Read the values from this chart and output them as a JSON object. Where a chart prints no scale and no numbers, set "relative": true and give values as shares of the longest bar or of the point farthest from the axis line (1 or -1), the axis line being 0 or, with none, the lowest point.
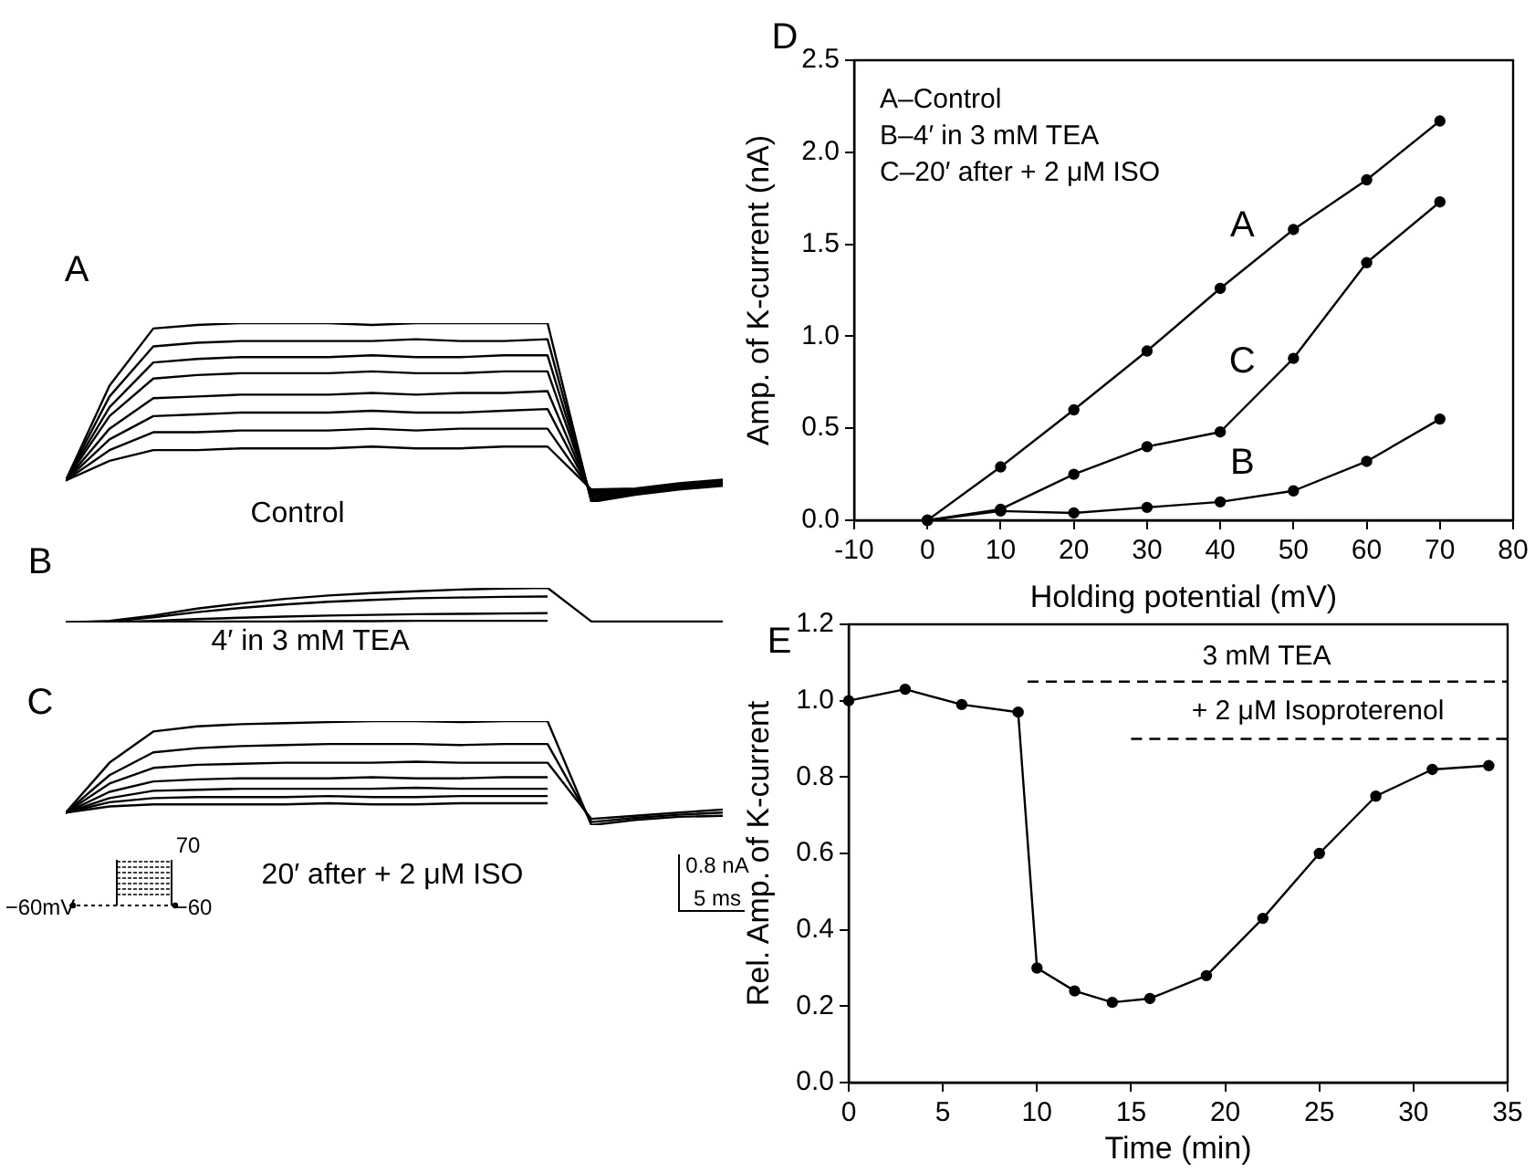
{
  "chart_data": [
    {
      "type": "line",
      "title": "A",
      "relative": true,
      "annotations": [
        "Control"
      ],
      "categories": [
        null,
        null,
        null,
        null,
        null,
        null,
        null,
        null,
        null,
        null,
        null,
        null,
        null,
        null,
        null,
        null
      ],
      "series": [
        {
          "color": "#000000",
          "values": [
            0.12,
            0.65,
            0.97,
            0.99,
            1,
            1,
            1,
            0.99,
            1,
            1,
            1,
            1,
            0,
            0.04,
            0.07,
            0.09
          ]
        },
        {
          "color": "#000000",
          "values": [
            0.12,
            0.59,
            0.87,
            0.89,
            0.9,
            0.9,
            0.9,
            0.9,
            0.91,
            0.9,
            0.9,
            0.91,
            0.01,
            0.045,
            0.075,
            0.095
          ]
        },
        {
          "color": "#000000",
          "values": [
            0.12,
            0.53,
            0.78,
            0.8,
            0.81,
            0.81,
            0.81,
            0.82,
            0.81,
            0.81,
            0.82,
            0.82,
            0.02,
            0.05,
            0.08,
            0.1
          ]
        },
        {
          "color": "#000000",
          "values": [
            0.12,
            0.48,
            0.69,
            0.71,
            0.72,
            0.72,
            0.72,
            0.73,
            0.72,
            0.72,
            0.73,
            0.73,
            0.03,
            0.055,
            0.085,
            0.105
          ]
        },
        {
          "color": "#000000",
          "values": [
            0.12,
            0.41,
            0.58,
            0.59,
            0.6,
            0.6,
            0.6,
            0.61,
            0.6,
            0.61,
            0.61,
            0.62,
            0.04,
            0.06,
            0.09,
            0.11
          ]
        },
        {
          "color": "#000000",
          "values": [
            0.12,
            0.35,
            0.48,
            0.49,
            0.5,
            0.5,
            0.5,
            0.51,
            0.5,
            0.5,
            0.51,
            0.52,
            0.05,
            0.065,
            0.095,
            0.115
          ]
        },
        {
          "color": "#000000",
          "values": [
            0.12,
            0.29,
            0.39,
            0.39,
            0.4,
            0.4,
            0.4,
            0.41,
            0.4,
            0.41,
            0.41,
            0.41,
            0.06,
            0.07,
            0.1,
            0.12
          ]
        },
        {
          "color": "#000000",
          "values": [
            0.12,
            0.23,
            0.29,
            0.29,
            0.3,
            0.3,
            0.3,
            0.31,
            0.3,
            0.3,
            0.31,
            0.31,
            0.07,
            0.075,
            0.105,
            0.125
          ]
        }
      ]
    },
    {
      "type": "line",
      "title": "B",
      "relative": true,
      "annotations": [
        "4′ in 3 mM TEA"
      ],
      "categories": [
        null,
        null,
        null,
        null,
        null,
        null,
        null,
        null,
        null,
        null,
        null,
        null,
        null,
        null,
        null,
        null
      ],
      "series": [
        {
          "color": "#000000",
          "values": [
            0,
            0.05,
            0.2,
            0.4,
            0.55,
            0.68,
            0.78,
            0.85,
            0.9,
            0.95,
            0.98,
            1,
            0.03,
            0.03,
            0.03,
            0.03
          ]
        },
        {
          "color": "#000000",
          "values": [
            0,
            0.03,
            0.15,
            0.3,
            0.42,
            0.52,
            0.6,
            0.65,
            0.7,
            0.72,
            0.74,
            0.75,
            null,
            null,
            null,
            null
          ]
        },
        {
          "color": "#000000",
          "values": [
            0,
            0.01,
            0.05,
            0.1,
            0.14,
            0.17,
            0.2,
            0.22,
            0.24,
            0.25,
            0.26,
            0.27,
            null,
            null,
            null,
            null
          ]
        },
        {
          "color": "#000000",
          "values": [
            0,
            0,
            0.01,
            0.02,
            0.03,
            0.03,
            0.04,
            0.04,
            0.05,
            0.05,
            0.05,
            0.05,
            null,
            null,
            null,
            null
          ]
        }
      ]
    },
    {
      "type": "line",
      "title": "C",
      "relative": true,
      "annotations": [
        "20′ after + 2 μM ISO",
        "70",
        "−60mV",
        "−60",
        "0.8 nA",
        "5 ms"
      ],
      "categories": [
        null,
        null,
        null,
        null,
        null,
        null,
        null,
        null,
        null,
        null,
        null,
        null,
        null,
        null,
        null,
        null
      ],
      "series": [
        {
          "color": "#000000",
          "values": [
            0.12,
            0.6,
            0.9,
            0.95,
            0.97,
            0.98,
            0.99,
            1,
            1,
            0.99,
            1,
            1,
            0,
            0.05,
            0.08,
            0.09
          ]
        },
        {
          "color": "#000000",
          "values": [
            0.12,
            0.48,
            0.7,
            0.74,
            0.76,
            0.77,
            0.78,
            0.78,
            0.78,
            0.77,
            0.78,
            0.78,
            0.03,
            0.07,
            0.1,
            0.12
          ]
        },
        {
          "color": "#000000",
          "values": [
            0.12,
            0.4,
            0.55,
            0.58,
            0.59,
            0.6,
            0.6,
            0.6,
            0.61,
            0.6,
            0.6,
            0.6,
            0.06,
            0.09,
            0.12,
            0.15
          ]
        },
        {
          "color": "#000000",
          "values": [
            0.12,
            0.32,
            0.42,
            0.44,
            0.45,
            0.45,
            0.45,
            0.46,
            0.45,
            0.45,
            0.46,
            0.46,
            null,
            null,
            null,
            null
          ]
        },
        {
          "color": "#000000",
          "values": [
            0.12,
            0.26,
            0.33,
            0.34,
            0.35,
            0.35,
            0.35,
            0.35,
            0.36,
            0.35,
            0.35,
            0.35,
            null,
            null,
            null,
            null
          ]
        },
        {
          "color": "#000000",
          "values": [
            0.12,
            0.22,
            0.26,
            0.27,
            0.27,
            0.27,
            0.28,
            0.27,
            0.27,
            0.28,
            0.28,
            0.28,
            null,
            null,
            null,
            null
          ]
        },
        {
          "color": "#000000",
          "values": [
            0.12,
            0.18,
            0.2,
            0.2,
            0.2,
            0.2,
            0.21,
            0.2,
            0.2,
            0.21,
            0.21,
            0.21,
            null,
            null,
            null,
            null
          ]
        }
      ]
    },
    {
      "type": "line",
      "title": "D",
      "xlabel": "Holding potential (mV)",
      "ylabel": "Amp. of K-current (nA)",
      "marker": "circle",
      "annotations": [
        "A–Control",
        "B–4′ in 3 mM TEA",
        "C–20′ after + 2 μM ISO"
      ],
      "x": [
        0,
        10,
        20,
        30,
        40,
        50,
        60,
        70
      ],
      "series": [
        {
          "name": "A",
          "color": "#000000",
          "values": [
            0,
            0.29,
            0.6,
            0.92,
            1.26,
            1.58,
            1.85,
            2.17
          ]
        },
        {
          "name": "C",
          "color": "#000000",
          "values": [
            0,
            0.06,
            0.25,
            0.4,
            0.48,
            0.88,
            1.4,
            1.73
          ]
        },
        {
          "name": "B",
          "color": "#000000",
          "values": [
            0,
            0.05,
            0.04,
            0.07,
            0.1,
            0.16,
            0.32,
            0.55
          ]
        }
      ],
      "xlim": [
        -10,
        80
      ],
      "xticks": [
        -10,
        0,
        10,
        20,
        30,
        40,
        50,
        60,
        70,
        80
      ],
      "ylim": [
        0,
        2.5
      ],
      "yticks": [
        {
          "value": 0,
          "label": "0.0"
        },
        {
          "value": 0.5,
          "label": "0.5"
        },
        {
          "value": 1,
          "label": "1.0"
        },
        {
          "value": 1.5,
          "label": "1.5"
        },
        {
          "value": 2,
          "label": "2.0"
        },
        {
          "value": 2.5,
          "label": "2.5"
        }
      ]
    },
    {
      "type": "line",
      "title": "E",
      "xlabel": "Time (min)",
      "ylabel": "Rel. Amp. of K-current",
      "marker": "circle",
      "annotations": [
        "3 mM TEA",
        "+ 2 μM Isoproterenol"
      ],
      "x": [
        0,
        3,
        6,
        9,
        10,
        12,
        14,
        16,
        19,
        22,
        25,
        28,
        31,
        34
      ],
      "series": [
        {
          "color": "#000000",
          "values": [
            1.0,
            1.03,
            0.99,
            0.97,
            0.3,
            0.24,
            0.21,
            0.22,
            0.28,
            0.43,
            0.6,
            0.75,
            0.82,
            0.83
          ]
        },
        {
          "color": "#000000",
          "x": [
            9.5,
            35
          ],
          "values": [
            1.05,
            1.05
          ],
          "marker": "none",
          "line_style": "dashed"
        },
        {
          "color": "#000000",
          "x": [
            15,
            35
          ],
          "values": [
            0.9,
            0.9
          ],
          "marker": "none",
          "line_style": "dashed"
        }
      ],
      "xlim": [
        0,
        35
      ],
      "xticks": [
        0,
        5,
        10,
        15,
        20,
        25,
        30,
        35
      ],
      "ylim": [
        0,
        1.2
      ],
      "yticks": [
        {
          "value": 0,
          "label": "0.0"
        },
        {
          "value": 0.2,
          "label": "0.2"
        },
        {
          "value": 0.4,
          "label": "0.4"
        },
        {
          "value": 0.6,
          "label": "0.6"
        },
        {
          "value": 0.8,
          "label": "0.8"
        },
        {
          "value": 1,
          "label": "1.0"
        },
        {
          "value": 1.2,
          "label": "1.2"
        }
      ]
    }
  ]
}
